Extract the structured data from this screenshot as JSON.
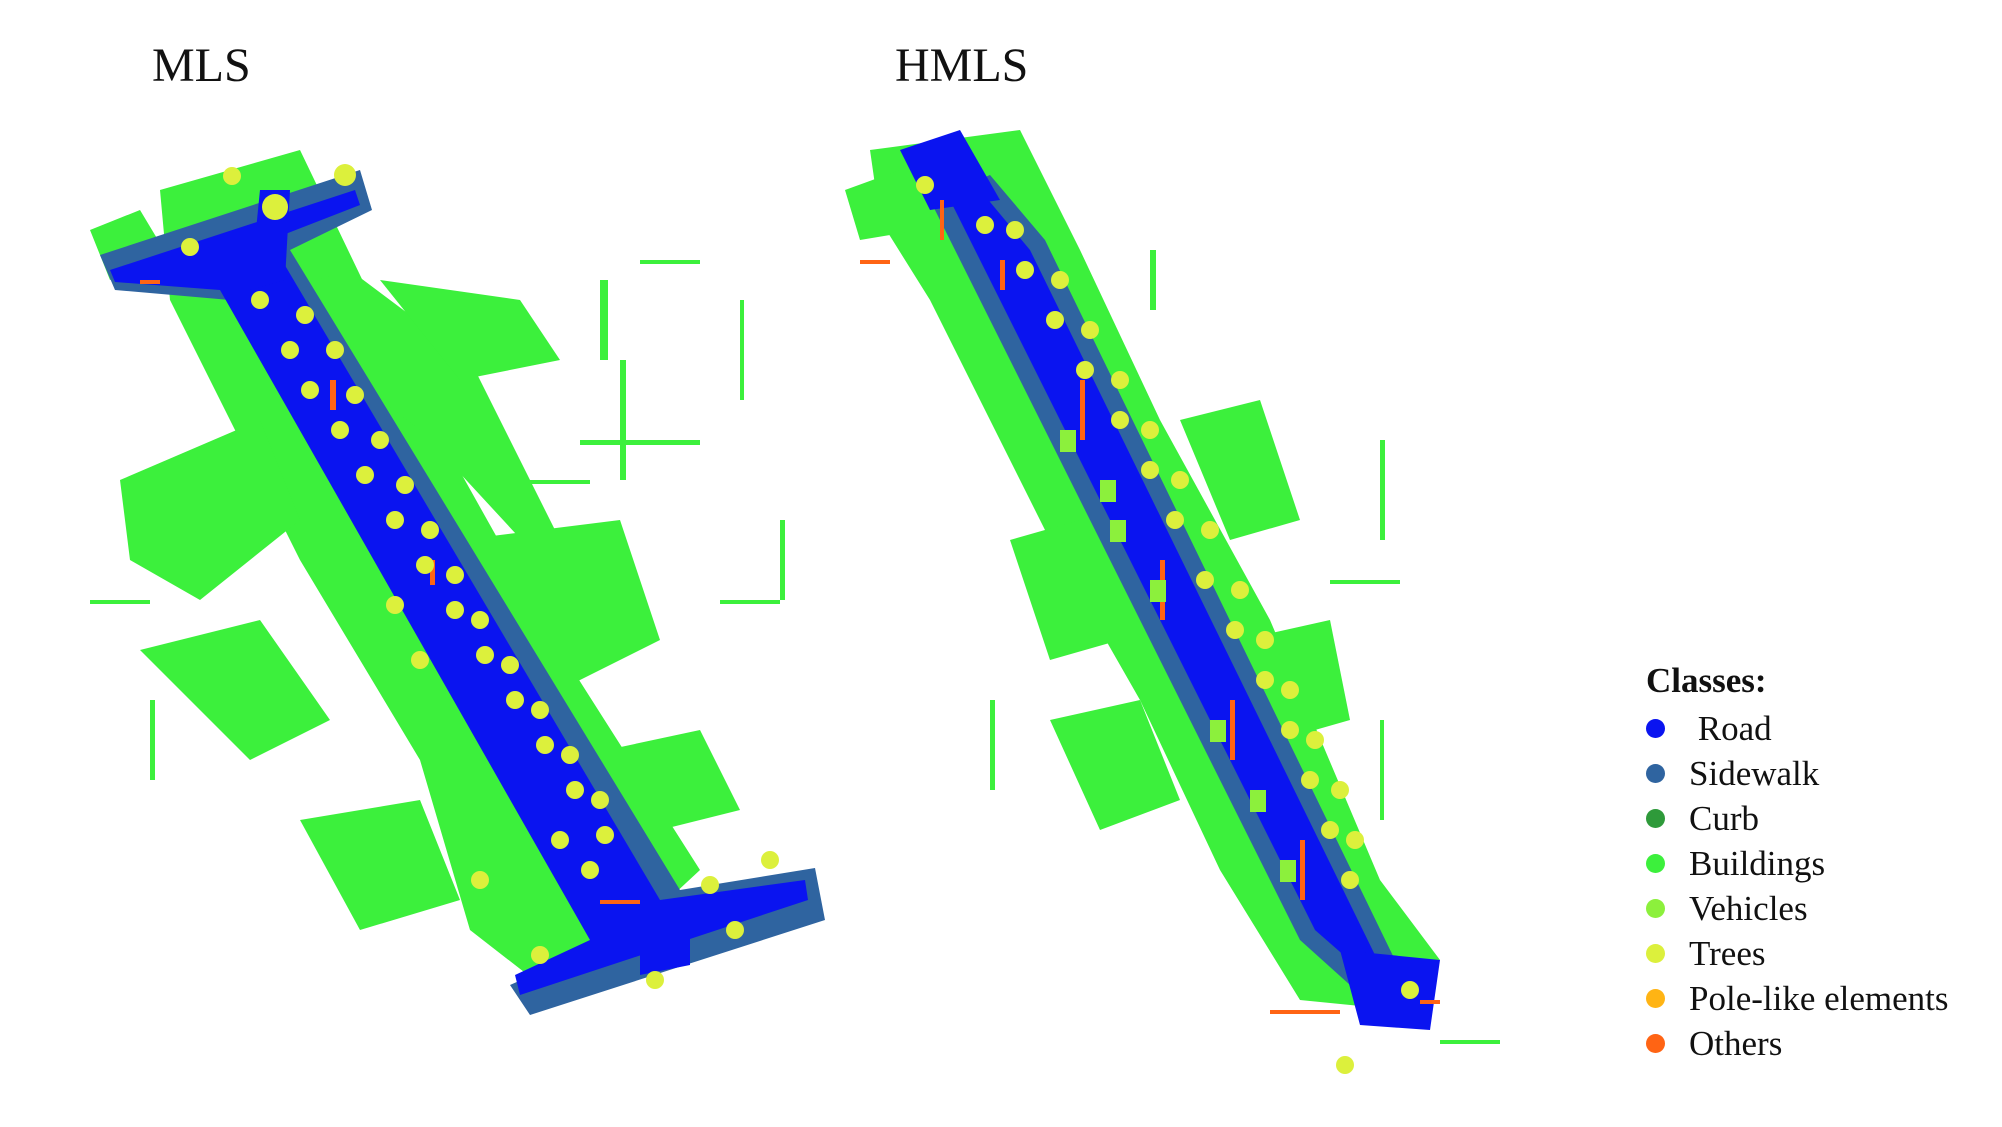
{
  "panels": {
    "left_title": "MLS",
    "right_title": "HMLS"
  },
  "legend": {
    "title": "Classes:",
    "items": [
      {
        "label": " Road",
        "color": "#0a14f0"
      },
      {
        "label": "Sidewalk",
        "color": "#2f64a0"
      },
      {
        "label": "Curb",
        "color": "#2e9a3a"
      },
      {
        "label": "Buildings",
        "color": "#3cf03c"
      },
      {
        "label": "Vehicles",
        "color": "#8cf03c"
      },
      {
        "label": "Trees",
        "color": "#dcf03c"
      },
      {
        "label": "Pole-like elements",
        "color": "#ffb414"
      },
      {
        "label": "Others",
        "color": "#ff6414"
      }
    ]
  }
}
